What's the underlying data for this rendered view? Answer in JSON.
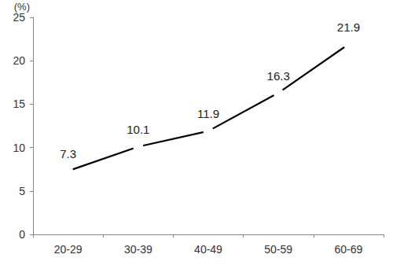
{
  "chart_data": {
    "type": "line",
    "ylabel": "(%)",
    "categories": [
      "20-29",
      "30-39",
      "40-49",
      "50-59",
      "60-69"
    ],
    "values": [
      7.3,
      10.1,
      11.9,
      16.3,
      21.9
    ],
    "color": "#000000",
    "marker": "circle",
    "data_labels": true,
    "ylim": [
      0,
      25
    ],
    "yticks": [
      0,
      5,
      10,
      15,
      20,
      25
    ],
    "grid": false
  }
}
